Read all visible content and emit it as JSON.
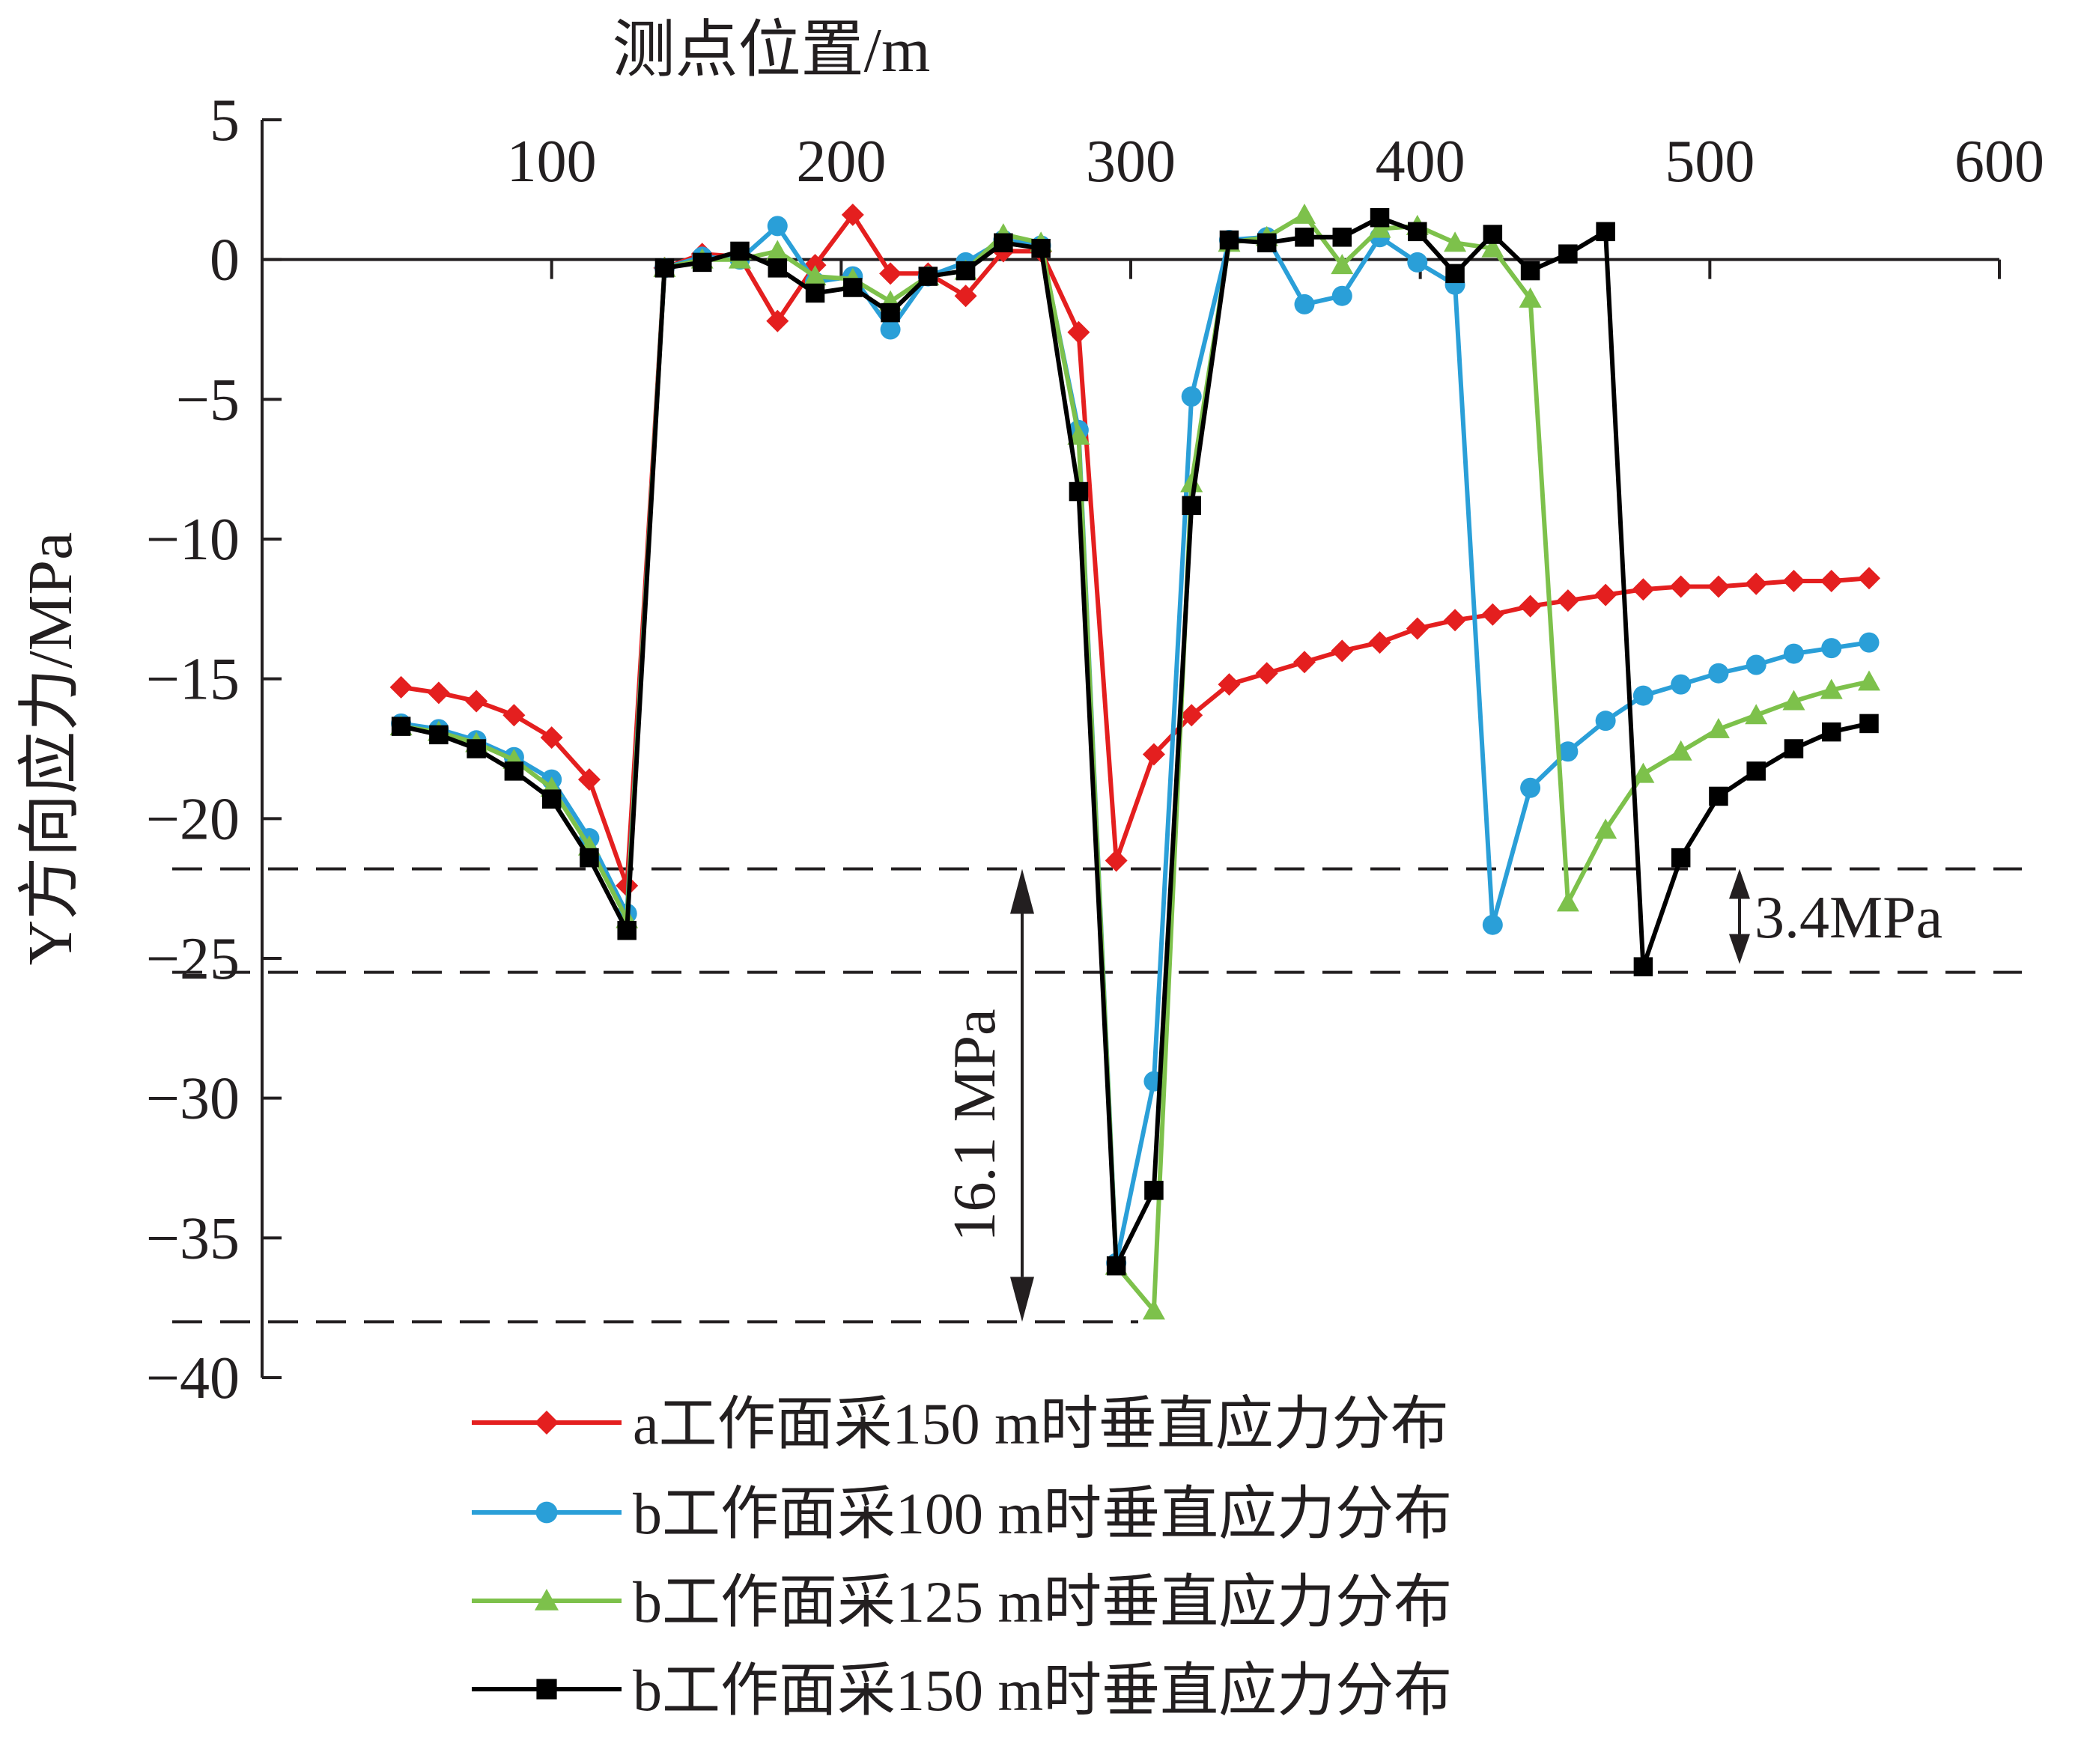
{
  "chart_data": {
    "type": "line",
    "xlabel": "测点位置/m",
    "ylabel": "Y方向应力/MPa",
    "xlim": [
      0,
      600
    ],
    "ylim": [
      -40,
      5
    ],
    "x_ticks": [
      100,
      200,
      300,
      400,
      500,
      600
    ],
    "y_ticks": [
      5,
      0,
      -5,
      -10,
      -15,
      -20,
      -25,
      -30,
      -35,
      -40
    ],
    "x_axis_position": "top",
    "grid": false,
    "legend_position": "bottom-right",
    "series": [
      {
        "name": "a工作面采150 m时垂直应力分布",
        "color": "#e41f1f",
        "marker": "diamond",
        "points": [
          [
            48,
            -15.3
          ],
          [
            61,
            -15.5
          ],
          [
            74,
            -15.8
          ],
          [
            87,
            -16.3
          ],
          [
            100,
            -17.1
          ],
          [
            113,
            -18.6
          ],
          [
            126,
            -22.4
          ],
          [
            139,
            -0.3
          ],
          [
            152,
            0.2
          ],
          [
            165,
            0.1
          ],
          [
            178,
            -2.2
          ],
          [
            191,
            -0.2
          ],
          [
            204,
            1.6
          ],
          [
            217,
            -0.5
          ],
          [
            230,
            -0.5
          ],
          [
            243,
            -1.3
          ],
          [
            256,
            0.3
          ],
          [
            269,
            0.3
          ],
          [
            282,
            -2.6
          ],
          [
            295,
            -21.5
          ],
          [
            308,
            -17.7
          ],
          [
            321,
            -16.3
          ],
          [
            334,
            -15.2
          ],
          [
            347,
            -14.8
          ],
          [
            360,
            -14.4
          ],
          [
            373,
            -14.0
          ],
          [
            386,
            -13.7
          ],
          [
            399,
            -13.2
          ],
          [
            412,
            -12.9
          ],
          [
            425,
            -12.7
          ],
          [
            438,
            -12.4
          ],
          [
            451,
            -12.2
          ],
          [
            464,
            -12.0
          ],
          [
            477,
            -11.8
          ],
          [
            490,
            -11.7
          ],
          [
            503,
            -11.7
          ],
          [
            516,
            -11.6
          ],
          [
            529,
            -11.5
          ],
          [
            542,
            -11.5
          ],
          [
            555,
            -11.4
          ]
        ]
      },
      {
        "name": "b工作面采100 m时垂直应力分布",
        "color": "#2a9fd8",
        "marker": "circle",
        "points": [
          [
            48,
            -16.6
          ],
          [
            61,
            -16.8
          ],
          [
            74,
            -17.2
          ],
          [
            87,
            -17.8
          ],
          [
            100,
            -18.6
          ],
          [
            113,
            -20.7
          ],
          [
            126,
            -23.4
          ],
          [
            139,
            -0.3
          ],
          [
            152,
            0.1
          ],
          [
            165,
            0.0
          ],
          [
            178,
            1.2
          ],
          [
            191,
            -0.8
          ],
          [
            204,
            -0.6
          ],
          [
            217,
            -2.5
          ],
          [
            230,
            -0.6
          ],
          [
            243,
            -0.1
          ],
          [
            256,
            0.7
          ],
          [
            269,
            0.5
          ],
          [
            282,
            -6.1
          ],
          [
            295,
            -35.9
          ],
          [
            308,
            -29.4
          ],
          [
            321,
            -4.9
          ],
          [
            334,
            0.7
          ],
          [
            347,
            0.8
          ],
          [
            360,
            -1.6
          ],
          [
            373,
            -1.3
          ],
          [
            386,
            0.8
          ],
          [
            399,
            -0.1
          ],
          [
            412,
            -0.9
          ],
          [
            425,
            -23.8
          ],
          [
            438,
            -18.9
          ],
          [
            451,
            -17.6
          ],
          [
            464,
            -16.5
          ],
          [
            477,
            -15.6
          ],
          [
            490,
            -15.2
          ],
          [
            503,
            -14.8
          ],
          [
            516,
            -14.5
          ],
          [
            529,
            -14.1
          ],
          [
            542,
            -13.9
          ],
          [
            555,
            -13.7
          ]
        ]
      },
      {
        "name": "b工作面采125 m时垂直应力分布",
        "color": "#7dc14b",
        "marker": "triangle",
        "points": [
          [
            48,
            -16.7
          ],
          [
            61,
            -16.9
          ],
          [
            74,
            -17.3
          ],
          [
            87,
            -17.9
          ],
          [
            100,
            -18.9
          ],
          [
            113,
            -21.0
          ],
          [
            126,
            -23.6
          ],
          [
            139,
            -0.3
          ],
          [
            152,
            0.0
          ],
          [
            165,
            0.0
          ],
          [
            178,
            0.3
          ],
          [
            191,
            -0.6
          ],
          [
            204,
            -0.7
          ],
          [
            217,
            -1.5
          ],
          [
            230,
            -0.6
          ],
          [
            243,
            -0.4
          ],
          [
            256,
            0.9
          ],
          [
            269,
            0.6
          ],
          [
            282,
            -6.3
          ],
          [
            295,
            -36.0
          ],
          [
            308,
            -37.6
          ],
          [
            321,
            -8.0
          ],
          [
            334,
            0.6
          ],
          [
            347,
            0.8
          ],
          [
            360,
            1.6
          ],
          [
            373,
            -0.2
          ],
          [
            386,
            1.1
          ],
          [
            399,
            1.2
          ],
          [
            412,
            0.6
          ],
          [
            425,
            0.4
          ],
          [
            438,
            -1.4
          ],
          [
            451,
            -23.0
          ],
          [
            464,
            -20.4
          ],
          [
            477,
            -18.4
          ],
          [
            490,
            -17.6
          ],
          [
            503,
            -16.8
          ],
          [
            516,
            -16.3
          ],
          [
            529,
            -15.8
          ],
          [
            542,
            -15.4
          ],
          [
            555,
            -15.1
          ]
        ]
      },
      {
        "name": "b工作面采150 m时垂直应力分布",
        "color": "#000000",
        "marker": "square",
        "points": [
          [
            48,
            -16.7
          ],
          [
            61,
            -17.0
          ],
          [
            74,
            -17.5
          ],
          [
            87,
            -18.3
          ],
          [
            100,
            -19.3
          ],
          [
            113,
            -21.4
          ],
          [
            126,
            -24.0
          ],
          [
            139,
            -0.3
          ],
          [
            152,
            -0.1
          ],
          [
            165,
            0.3
          ],
          [
            178,
            -0.3
          ],
          [
            191,
            -1.2
          ],
          [
            204,
            -1.0
          ],
          [
            217,
            -1.9
          ],
          [
            230,
            -0.6
          ],
          [
            243,
            -0.4
          ],
          [
            256,
            0.6
          ],
          [
            269,
            0.4
          ],
          [
            282,
            -8.3
          ],
          [
            295,
            -36.0
          ],
          [
            308,
            -33.3
          ],
          [
            321,
            -8.8
          ],
          [
            334,
            0.7
          ],
          [
            347,
            0.6
          ],
          [
            360,
            0.8
          ],
          [
            373,
            0.8
          ],
          [
            386,
            1.5
          ],
          [
            399,
            1.0
          ],
          [
            412,
            -0.5
          ],
          [
            425,
            0.9
          ],
          [
            438,
            -0.4
          ],
          [
            451,
            0.2
          ],
          [
            464,
            1.0
          ],
          [
            477,
            -25.3
          ],
          [
            490,
            -21.4
          ],
          [
            503,
            -19.2
          ],
          [
            516,
            -18.3
          ],
          [
            529,
            -17.5
          ],
          [
            542,
            -16.9
          ],
          [
            555,
            -16.6
          ]
        ]
      }
    ],
    "reference_lines_y": [
      -21.8,
      -25.5,
      -38.0
    ],
    "annotations": [
      {
        "text": "3.4MPa",
        "from": -21.8,
        "to": -25.2
      },
      {
        "text": "16.1 MPa",
        "from": -21.8,
        "to": -38.0
      }
    ]
  }
}
